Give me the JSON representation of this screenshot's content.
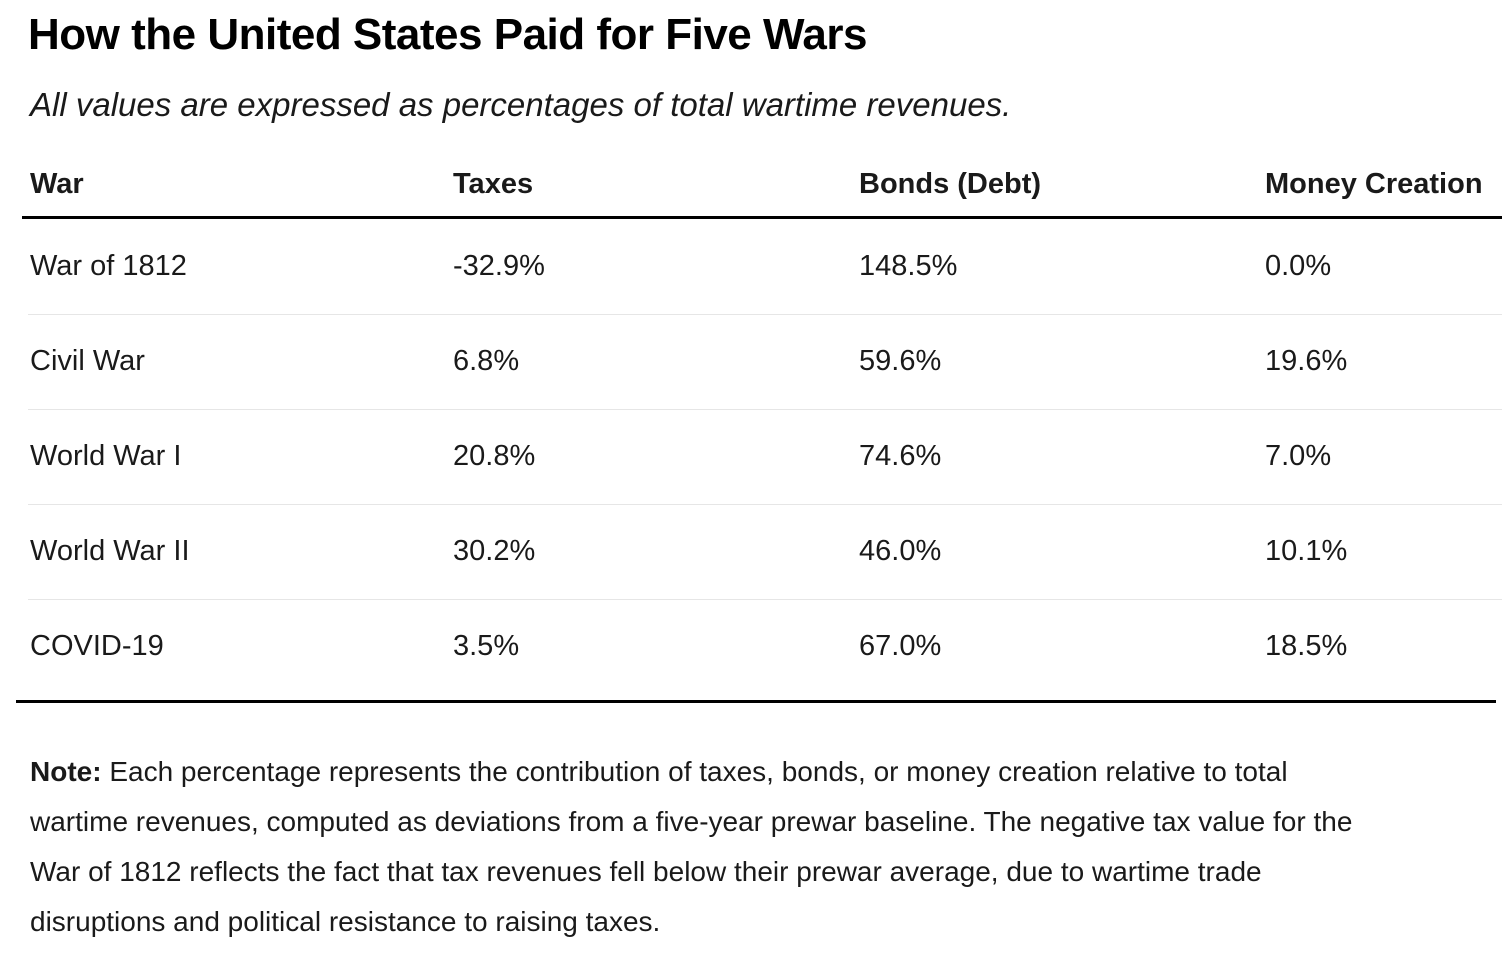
{
  "chart_data": {
    "type": "table",
    "title": "How the United States Paid for Five Wars",
    "subtitle": "All values are expressed as percentages of total wartime revenues.",
    "columns": [
      "War",
      "Taxes",
      "Bonds (Debt)",
      "Money Creation"
    ],
    "rows": [
      [
        "War of 1812",
        "-32.9%",
        "148.5%",
        "0.0%"
      ],
      [
        "Civil War",
        "6.8%",
        "59.6%",
        "19.6%"
      ],
      [
        "World War I",
        "20.8%",
        "74.6%",
        "7.0%"
      ],
      [
        "World War II",
        "30.2%",
        "46.0%",
        "10.1%"
      ],
      [
        "COVID-19",
        "3.5%",
        "67.0%",
        "18.5%"
      ]
    ],
    "series": [
      {
        "name": "Taxes",
        "values": [
          -32.9,
          6.8,
          20.8,
          30.2,
          3.5
        ]
      },
      {
        "name": "Bonds (Debt)",
        "values": [
          148.5,
          59.6,
          74.6,
          46.0,
          67.0
        ]
      },
      {
        "name": "Money Creation",
        "values": [
          0.0,
          19.6,
          7.0,
          10.1,
          18.5
        ]
      }
    ],
    "categories": [
      "War of 1812",
      "Civil War",
      "World War I",
      "World War II",
      "COVID-19"
    ],
    "note_label": "Note:",
    "note_text": " Each percentage represents the contribution of taxes, bonds, or money creation relative to total wartime revenues, computed as deviations from a five-year prewar baseline. The negative tax value for the War of 1812 reflects the fact that tax revenues fell below their prewar average, due to wartime trade disruptions and political resistance to raising taxes."
  }
}
